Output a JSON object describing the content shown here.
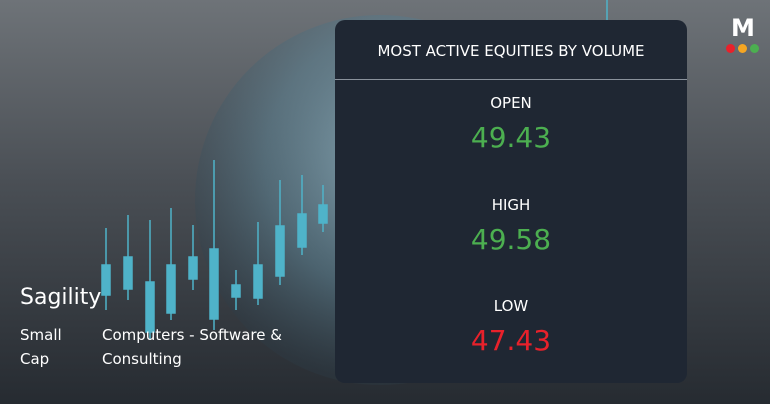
{
  "brand": {
    "logo": "M"
  },
  "company": {
    "name": "Sagility",
    "size": "Small Cap",
    "sector": "Computers - Software & Consulting"
  },
  "panel": {
    "title": "MOST ACTIVE EQUITIES BY VOLUME",
    "stats": [
      {
        "label": "OPEN",
        "value": "49.43",
        "color": "#4caf50"
      },
      {
        "label": "HIGH",
        "value": "49.58",
        "color": "#4caf50"
      },
      {
        "label": "LOW",
        "value": "47.43",
        "color": "#e8212b"
      }
    ]
  }
}
